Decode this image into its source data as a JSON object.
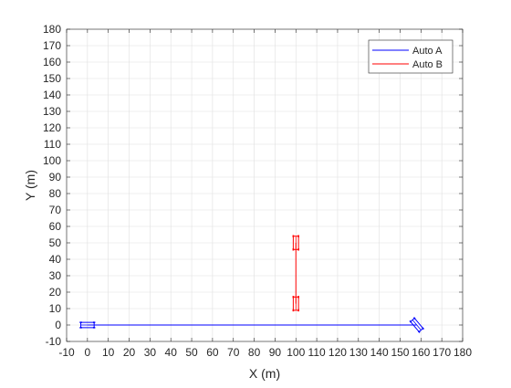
{
  "chart_data": {
    "type": "line",
    "title": "",
    "xlabel": "X (m)",
    "ylabel": "Y (m)",
    "xlim": [
      -10,
      180
    ],
    "ylim": [
      -10,
      180
    ],
    "xticks": [
      -10,
      0,
      10,
      20,
      30,
      40,
      50,
      60,
      70,
      80,
      90,
      100,
      110,
      120,
      130,
      140,
      150,
      160,
      170,
      180
    ],
    "yticks": [
      -10,
      0,
      10,
      20,
      30,
      40,
      50,
      60,
      70,
      80,
      90,
      100,
      110,
      120,
      130,
      140,
      150,
      160,
      170,
      180
    ],
    "tick_labels_x": [
      "-10",
      "0",
      "10",
      "20",
      "30",
      "40",
      "50",
      "60",
      "70",
      "80",
      "90",
      "100",
      "110",
      "120",
      "130",
      "140",
      "150",
      "160",
      "170",
      "180"
    ],
    "tick_labels_y": [
      "-10",
      "0",
      "10",
      "20",
      "30",
      "40",
      "50",
      "60",
      "70",
      "80",
      "90",
      "100",
      "110",
      "120",
      "130",
      "140",
      "150",
      "160",
      "170",
      "180"
    ],
    "grid": true,
    "legend_position": "top-right",
    "series": [
      {
        "name": "Auto A",
        "color": "#0000ff",
        "path": [
          [
            0,
            0
          ],
          [
            158,
            0
          ]
        ],
        "vehicle_markers": [
          {
            "center": [
              0,
              0
            ],
            "heading_deg": 0,
            "length": 4,
            "width": 2
          },
          {
            "center": [
              158,
              0
            ],
            "heading_deg": -50,
            "length": 4,
            "width": 2
          }
        ]
      },
      {
        "name": "Auto B",
        "color": "#ff0000",
        "path": [
          [
            100,
            13
          ],
          [
            100,
            50
          ]
        ],
        "vehicle_markers": [
          {
            "center": [
              100,
              13
            ],
            "heading_deg": 90,
            "length": 4,
            "width": 2
          },
          {
            "center": [
              100,
              50
            ],
            "heading_deg": 90,
            "length": 4,
            "width": 2
          }
        ]
      }
    ]
  }
}
